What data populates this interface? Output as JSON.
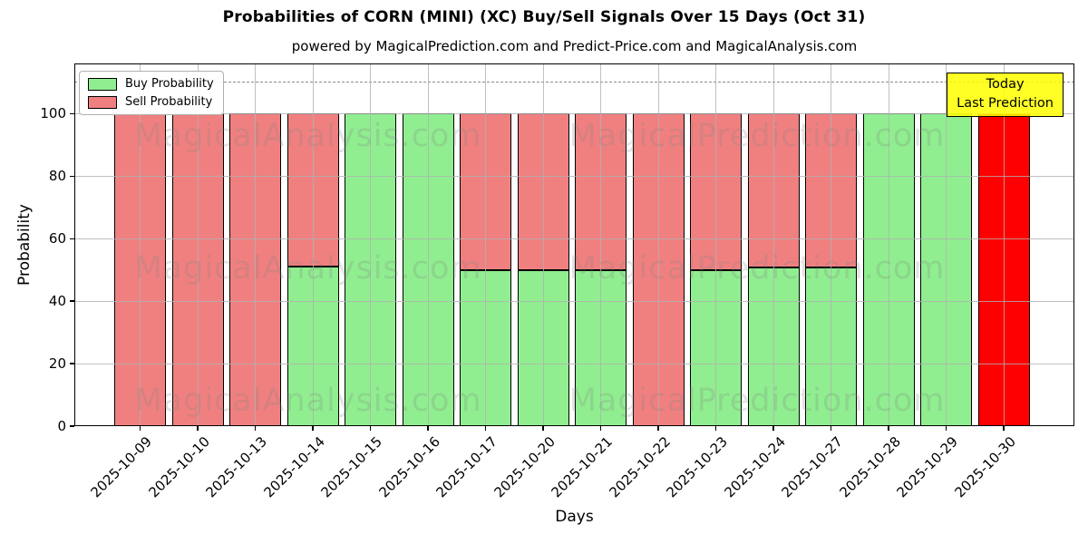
{
  "chart_data": {
    "type": "bar",
    "stacked": true,
    "title": "Probabilities of CORN (MINI) (XC) Buy/Sell Signals Over 15 Days (Oct 31)",
    "subtitle": "powered by MagicalPrediction.com and Predict-Price.com and MagicalAnalysis.com",
    "xlabel": "Days",
    "ylabel": "Probability",
    "ylim": [
      0,
      116
    ],
    "yticks": [
      0,
      20,
      40,
      60,
      80,
      100
    ],
    "threshold_line_y": 110,
    "grid": true,
    "legend_position": "upper-left",
    "categories": [
      "2025-10-09",
      "2025-10-10",
      "2025-10-13",
      "2025-10-14",
      "2025-10-15",
      "2025-10-16",
      "2025-10-17",
      "2025-10-20",
      "2025-10-21",
      "2025-10-22",
      "2025-10-23",
      "2025-10-24",
      "2025-10-27",
      "2025-10-28",
      "2025-10-29",
      "2025-10-30"
    ],
    "series": [
      {
        "name": "Buy Probability",
        "color": "#90ee90",
        "values": [
          0,
          0,
          0,
          51,
          100,
          100,
          49.75,
          49.75,
          49.75,
          0,
          49.75,
          50.75,
          50.75,
          100,
          100,
          0
        ]
      },
      {
        "name": "Sell Probability",
        "color": "#f08080",
        "values": [
          100,
          100,
          100,
          49,
          0,
          0,
          50.25,
          50.25,
          50.25,
          100,
          50.25,
          49.25,
          49.25,
          0,
          0,
          100
        ]
      }
    ],
    "today_bar": {
      "date": "2025-10-30",
      "color": "#ff0000"
    },
    "annotation": {
      "line1": "Today",
      "line2": "Last Prediction",
      "bg_color": "#ffff00"
    },
    "watermarks": [
      "MagicalAnalysis.com",
      "MagicalPrediction.com"
    ],
    "colors": {
      "grid": "#b0b0b0",
      "dashed_line": "#8a8a8a",
      "bar_edge": "#000000",
      "axes": "#000000"
    }
  }
}
